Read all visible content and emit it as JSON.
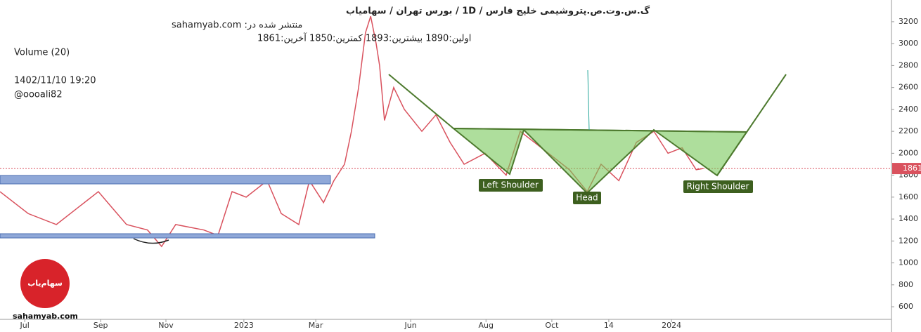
{
  "chart_data": {
    "type": "line",
    "header": {
      "title": "گ.س.وت.ص.پتروشیمی خلیج فارس / 1D / بورس تهران / سهامیاب",
      "published": "منتشر شده در: sahamyab.com",
      "ohlc": "اولین:1890  بیشترین:1893  کمترین:1850  آخرین:1861",
      "volume": "Volume (20)",
      "datetime": "1402/11/10 19:20",
      "author": "@oooali82"
    },
    "watermark": "sahamyab.com",
    "logo": "سهام‌یاب",
    "annotations": [
      "Left Shoulder",
      "Head",
      "Right Shoulder"
    ],
    "x": [
      0,
      9.8,
      19.6,
      26.9,
      34.2,
      39.1,
      44,
      51.3,
      56.2,
      61.1,
      70.9,
      75.8,
      80.7,
      85.6,
      92.9,
      97.8,
      103.9,
      107.6,
      112.5,
      116.1,
      119.8,
      122.2,
      124.7,
      127.1,
      128.9,
      130.8,
      132,
      133.7,
      136.9,
      140.6,
      146.7,
      151.6,
      156.5,
      161.4,
      168.7,
      176,
      180.9,
      190.7,
      198,
      204.2,
      209,
      215.2,
      221.3,
      227.4,
      232.3,
      237.2,
      242.1,
      244.5
    ],
    "series": [
      {
        "name": "Price",
        "color": "#d9525e",
        "values": [
          1650,
          1450,
          1350,
          1500,
          1650,
          1500,
          1350,
          1300,
          1150,
          1350,
          1300,
          1250,
          1650,
          1600,
          1750,
          1450,
          1350,
          1750,
          1550,
          1750,
          1900,
          2200,
          2600,
          3100,
          3250,
          3000,
          2800,
          2300,
          2600,
          2400,
          2200,
          2350,
          2100,
          1900,
          2000,
          1800,
          2200,
          2000,
          1850,
          1650,
          1900,
          1750,
          2100,
          2200,
          2000,
          2050,
          1850,
          1861
        ]
      }
    ],
    "last_price": 1861,
    "xlim": [
      0,
      310
    ],
    "xticks": [
      {
        "value": 8.6,
        "label": "Jul"
      },
      {
        "value": 35,
        "label": "Sep"
      },
      {
        "value": 57.7,
        "label": "Nov"
      },
      {
        "value": 84.8,
        "label": "2023"
      },
      {
        "value": 109.8,
        "label": "Mar"
      },
      {
        "value": 142.8,
        "label": "Jun"
      },
      {
        "value": 169,
        "label": "Aug"
      },
      {
        "value": 191.9,
        "label": "Oct"
      },
      {
        "value": 211.7,
        "label": "14"
      },
      {
        "value": 233.5,
        "label": "2024"
      }
    ],
    "ylim": [
      485,
      3398
    ],
    "yticks": [
      600,
      800,
      1000,
      1200,
      1400,
      1600,
      1800,
      2000,
      2200,
      2400,
      2600,
      2800,
      3000,
      3200
    ]
  }
}
